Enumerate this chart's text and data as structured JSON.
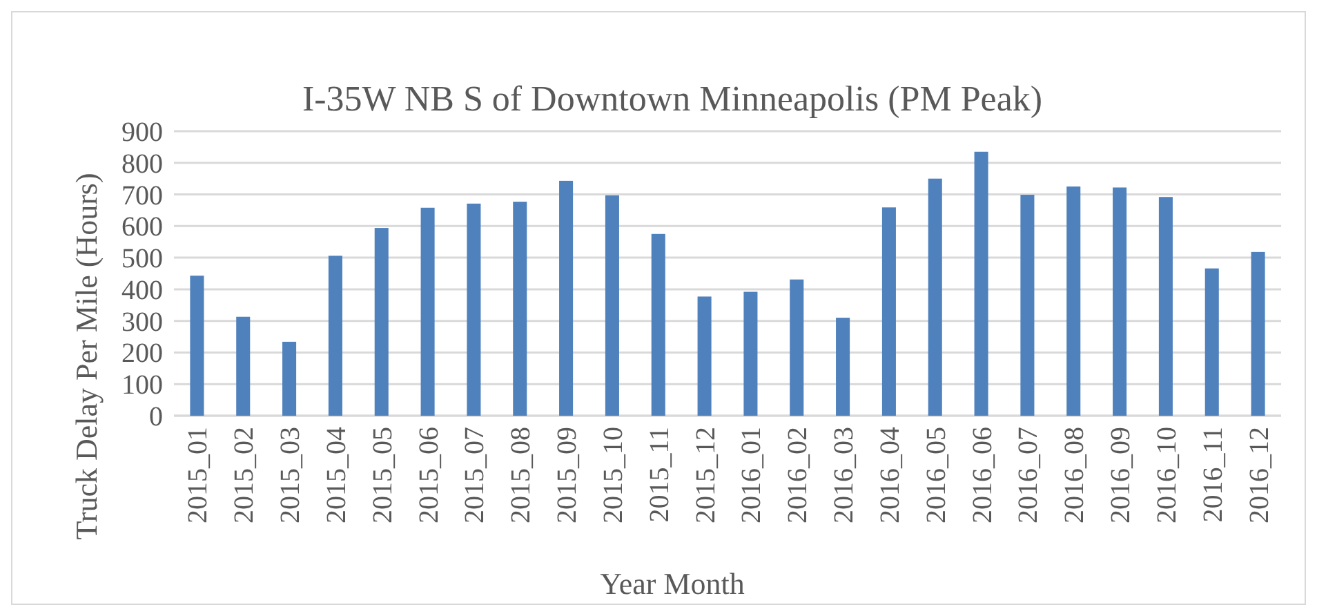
{
  "chart_data": {
    "type": "bar",
    "title": "I-35W NB S of Downtown Minneapolis (PM Peak)",
    "xlabel": "Year Month",
    "ylabel": "Truck Delay Per Mile (Hours)",
    "categories": [
      "2015_01",
      "2015_02",
      "2015_03",
      "2015_04",
      "2015_05",
      "2015_06",
      "2015_07",
      "2015_08",
      "2015_09",
      "2015_10",
      "2015_11",
      "2015_12",
      "2016_01",
      "2016_02",
      "2016_03",
      "2016_04",
      "2016_05",
      "2016_06",
      "2016_07",
      "2016_08",
      "2016_09",
      "2016_10",
      "2016_11",
      "2016_12"
    ],
    "values": [
      443,
      313,
      234,
      506,
      594,
      658,
      671,
      677,
      743,
      697,
      575,
      377,
      392,
      431,
      310,
      659,
      750,
      835,
      699,
      725,
      722,
      692,
      466,
      518
    ],
    "color": "#4f81bd",
    "ylim": [
      0,
      900
    ],
    "yticks": [
      0,
      100,
      200,
      300,
      400,
      500,
      600,
      700,
      800,
      900
    ],
    "grid": "y"
  }
}
